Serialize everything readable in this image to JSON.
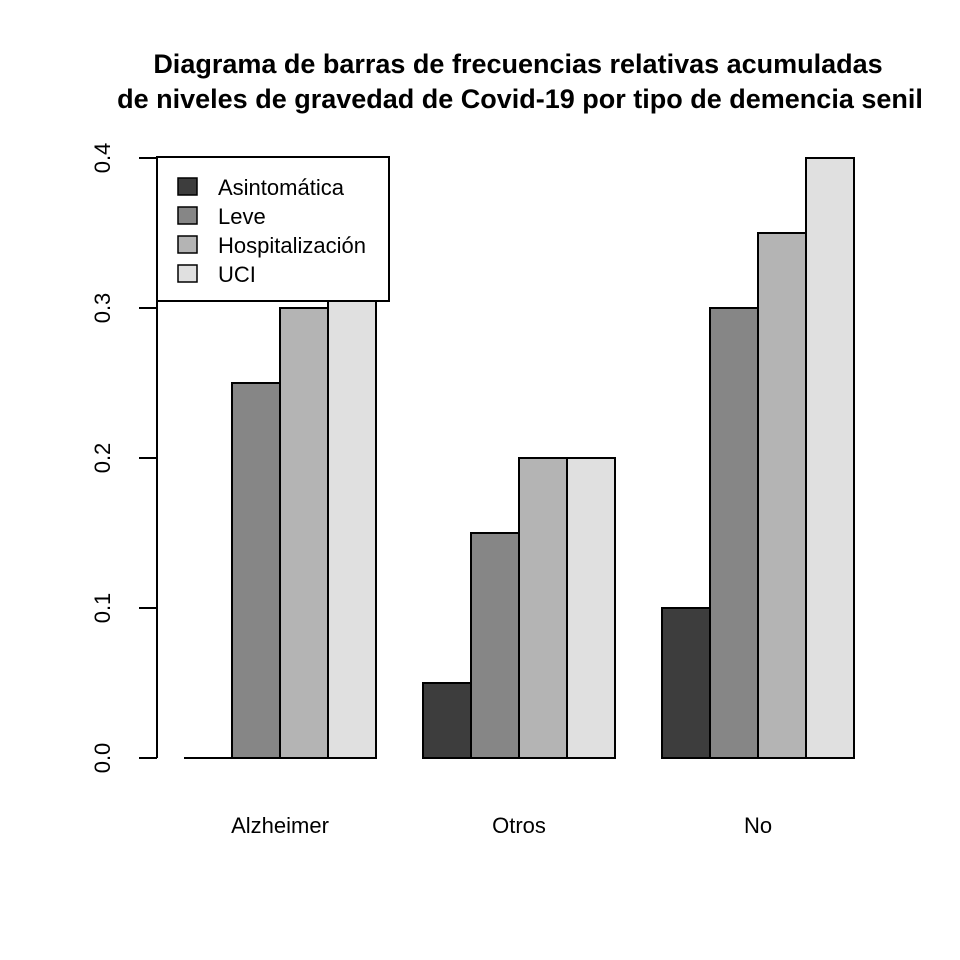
{
  "chart_data": {
    "type": "bar",
    "title": "Diagrama de barras de frecuencias relativas acumuladas",
    "subtitle": "de niveles de gravedad de Covid-19 por tipo de demencia senil",
    "xlabel": "",
    "ylabel": "",
    "categories": [
      "Alzheimer",
      "Otros",
      "No"
    ],
    "series": [
      {
        "name": "Asintomática",
        "color": "#3d3d3d",
        "values": [
          0.0,
          0.05,
          0.1
        ]
      },
      {
        "name": "Leve",
        "color": "#868686",
        "values": [
          0.25,
          0.15,
          0.3
        ]
      },
      {
        "name": "Hospitalización",
        "color": "#b4b4b4",
        "values": [
          0.3,
          0.2,
          0.35
        ]
      },
      {
        "name": "UCI",
        "color": "#e0e0e0",
        "values": [
          0.4,
          0.2,
          0.4
        ]
      }
    ],
    "ylim": [
      0,
      0.4
    ],
    "yticks": [
      "0.0",
      "0.1",
      "0.2",
      "0.3",
      "0.4"
    ],
    "grid": false,
    "legend_position": "top-left"
  }
}
